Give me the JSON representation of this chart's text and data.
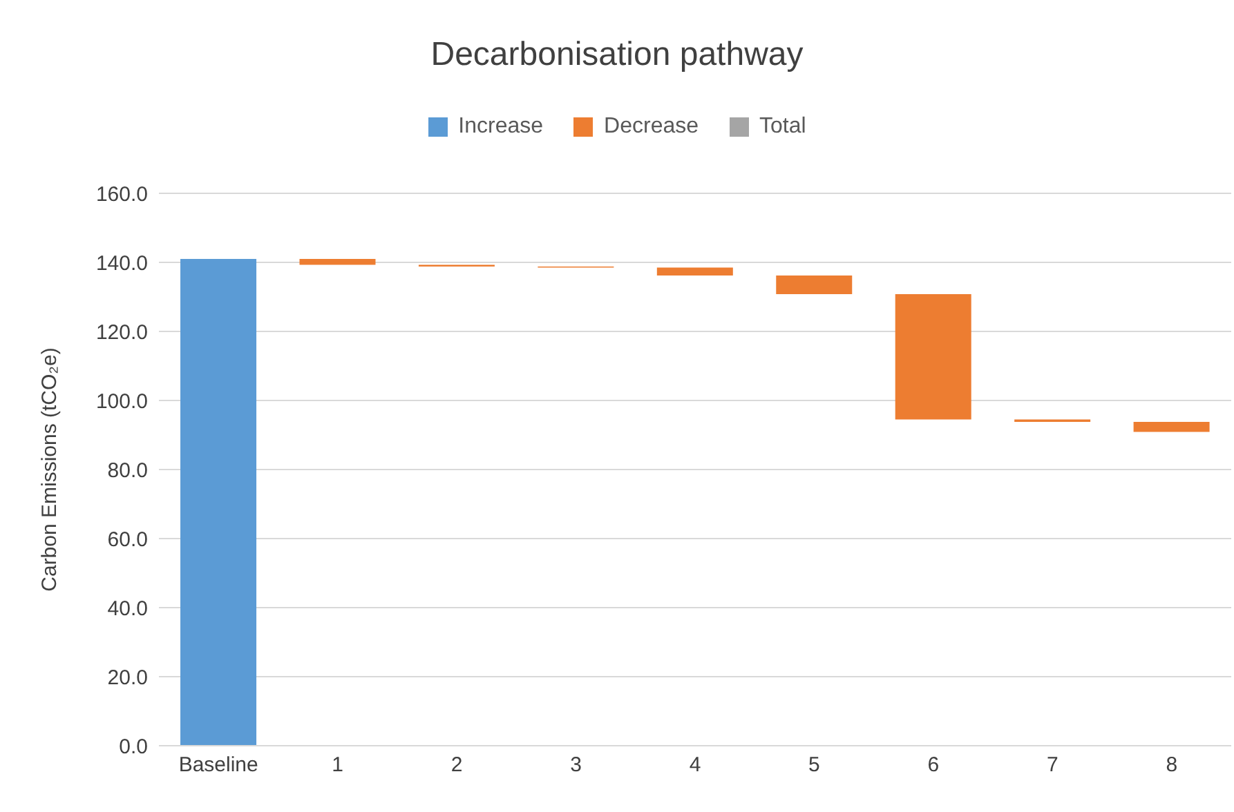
{
  "chart_data": {
    "type": "bar",
    "title": "Decarbonisation pathway",
    "ylabel": "Carbon Emissions (tCO₂e)",
    "categories": [
      "Baseline",
      "1",
      "2",
      "3",
      "4",
      "5",
      "6",
      "7",
      "8"
    ],
    "series": [
      {
        "name": "Increase",
        "color": "#5b9bd5",
        "values": [
          141,
          null,
          null,
          null,
          null,
          null,
          null,
          null,
          null
        ]
      },
      {
        "name": "Decrease",
        "color": "#ed7d31",
        "base": [
          null,
          139.3,
          138.8,
          138.5,
          136.2,
          130.8,
          94.5,
          93.8,
          90.9
        ],
        "values": [
          null,
          1.7,
          0.5,
          0.3,
          2.3,
          5.4,
          36.3,
          0.7,
          2.9
        ]
      },
      {
        "name": "Total",
        "color": "#a5a5a5",
        "values": [
          null,
          null,
          null,
          null,
          null,
          null,
          null,
          null,
          null
        ]
      }
    ],
    "ylim": [
      0,
      160
    ],
    "yticks": [
      {
        "value": 0,
        "label": "0.0"
      },
      {
        "value": 20,
        "label": "20.0"
      },
      {
        "value": 40,
        "label": "40.0"
      },
      {
        "value": 60,
        "label": "60.0"
      },
      {
        "value": 80,
        "label": "80.0"
      },
      {
        "value": 100,
        "label": "100.0"
      },
      {
        "value": 120,
        "label": "120.0"
      },
      {
        "value": 140,
        "label": "140.0"
      },
      {
        "value": 160,
        "label": "160.0"
      }
    ],
    "grid": "y",
    "legend": "top"
  }
}
